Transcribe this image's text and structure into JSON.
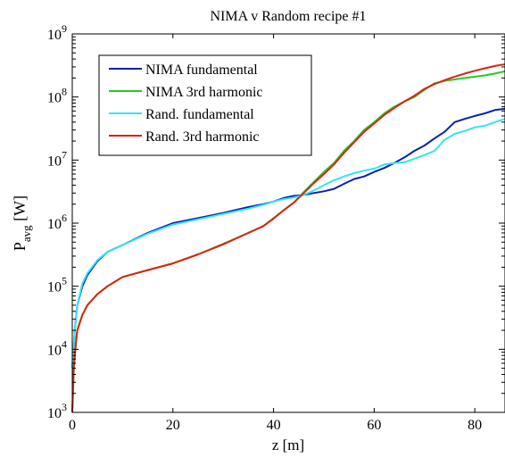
{
  "chart_data": {
    "type": "line",
    "title": "NIMA v Random recipe #1",
    "xlabel": "z [m]",
    "ylabel": {
      "main": "P",
      "sub": "avg",
      "unit": " [W]"
    },
    "xlim": [
      0,
      86
    ],
    "ylim": [
      1000,
      1000000000
    ],
    "yscale": "log",
    "x_ticks": [
      0,
      20,
      40,
      60,
      80
    ],
    "x_tick_labels": [
      "0",
      "20",
      "40",
      "60",
      "80"
    ],
    "y_ticks": [
      1000,
      10000,
      100000,
      1000000,
      10000000,
      100000000,
      1000000000
    ],
    "y_tick_labels": [
      {
        "base": "10",
        "exp": "3"
      },
      {
        "base": "10",
        "exp": "4"
      },
      {
        "base": "10",
        "exp": "5"
      },
      {
        "base": "10",
        "exp": "6"
      },
      {
        "base": "10",
        "exp": "7"
      },
      {
        "base": "10",
        "exp": "8"
      },
      {
        "base": "10",
        "exp": "9"
      }
    ],
    "grid": false,
    "legend_position": "top-left",
    "series": [
      {
        "name": "NIMA fundamental",
        "color": "#0a1fb0",
        "x": [
          0,
          0.5,
          1,
          2,
          3,
          5,
          7,
          10,
          15,
          20,
          25,
          30,
          35,
          38,
          40,
          42,
          44,
          46,
          48,
          50,
          52,
          54,
          56,
          58,
          60,
          62,
          64,
          66,
          68,
          70,
          72,
          74,
          76,
          78,
          80,
          82,
          84,
          86
        ],
        "y": [
          5000,
          20000,
          50000,
          100000,
          150000,
          250000,
          350000,
          450000,
          700000,
          1000000,
          1200000,
          1450000,
          1800000,
          2000000,
          2200000,
          2500000,
          2700000,
          2800000,
          3000000,
          3200000,
          3500000,
          4200000,
          5000000,
          5500000,
          6500000,
          7500000,
          9000000,
          11000000,
          14000000,
          17000000,
          22000000,
          28000000,
          40000000,
          45000000,
          50000000,
          55000000,
          62000000,
          65000000
        ]
      },
      {
        "name": "NIMA 3rd harmonic",
        "color": "#22cc22",
        "x": [
          0,
          0.3,
          0.7,
          1,
          2,
          3,
          5,
          7,
          10,
          15,
          20,
          25,
          30,
          35,
          38,
          40,
          42,
          44,
          46,
          48,
          50,
          52,
          54,
          56,
          58,
          60,
          62,
          64,
          66,
          68,
          70,
          72,
          74,
          76,
          78,
          80,
          82,
          84,
          86
        ],
        "y": [
          1000,
          5000,
          12000,
          20000,
          35000,
          50000,
          75000,
          100000,
          140000,
          180000,
          230000,
          320000,
          470000,
          700000,
          900000,
          1200000,
          1600000,
          2100000,
          3100000,
          4500000,
          6500000,
          9000000,
          14000000,
          20000000,
          30000000,
          40000000,
          55000000,
          70000000,
          85000000,
          100000000,
          130000000,
          165000000,
          180000000,
          190000000,
          200000000,
          210000000,
          220000000,
          235000000,
          255000000
        ]
      },
      {
        "name": "Rand. fundamental",
        "color": "#33e5f0",
        "x": [
          0,
          0.5,
          1,
          2,
          3,
          5,
          7,
          10,
          15,
          20,
          25,
          30,
          35,
          38,
          40,
          42,
          44,
          46,
          48,
          50,
          52,
          54,
          56,
          58,
          60,
          62,
          64,
          66,
          68,
          70,
          72,
          74,
          76,
          78,
          80,
          82,
          84,
          86
        ],
        "y": [
          5000,
          20000,
          50000,
          110000,
          160000,
          260000,
          350000,
          450000,
          680000,
          950000,
          1150000,
          1400000,
          1700000,
          1950000,
          2200000,
          2400000,
          2550000,
          2800000,
          3300000,
          4000000,
          4800000,
          5500000,
          6200000,
          6800000,
          7300000,
          8500000,
          9000000,
          9200000,
          10500000,
          12000000,
          14000000,
          21000000,
          26000000,
          29000000,
          33000000,
          35000000,
          40000000,
          45000000
        ]
      },
      {
        "name": "Rand. 3rd harmonic",
        "color": "#dd2211",
        "x": [
          0,
          0.3,
          0.7,
          1,
          2,
          3,
          5,
          7,
          10,
          15,
          20,
          25,
          30,
          35,
          38,
          40,
          42,
          44,
          46,
          48,
          50,
          52,
          54,
          56,
          58,
          60,
          62,
          64,
          66,
          68,
          70,
          72,
          74,
          76,
          78,
          80,
          82,
          84,
          86
        ],
        "y": [
          1000,
          5000,
          12000,
          20000,
          35000,
          50000,
          75000,
          100000,
          140000,
          180000,
          230000,
          320000,
          460000,
          700000,
          900000,
          1180000,
          1600000,
          2100000,
          3000000,
          4300000,
          6000000,
          8500000,
          13000000,
          19000000,
          28000000,
          38000000,
          52000000,
          67000000,
          85000000,
          105000000,
          135000000,
          160000000,
          185000000,
          210000000,
          235000000,
          260000000,
          285000000,
          310000000,
          330000000
        ]
      }
    ]
  }
}
